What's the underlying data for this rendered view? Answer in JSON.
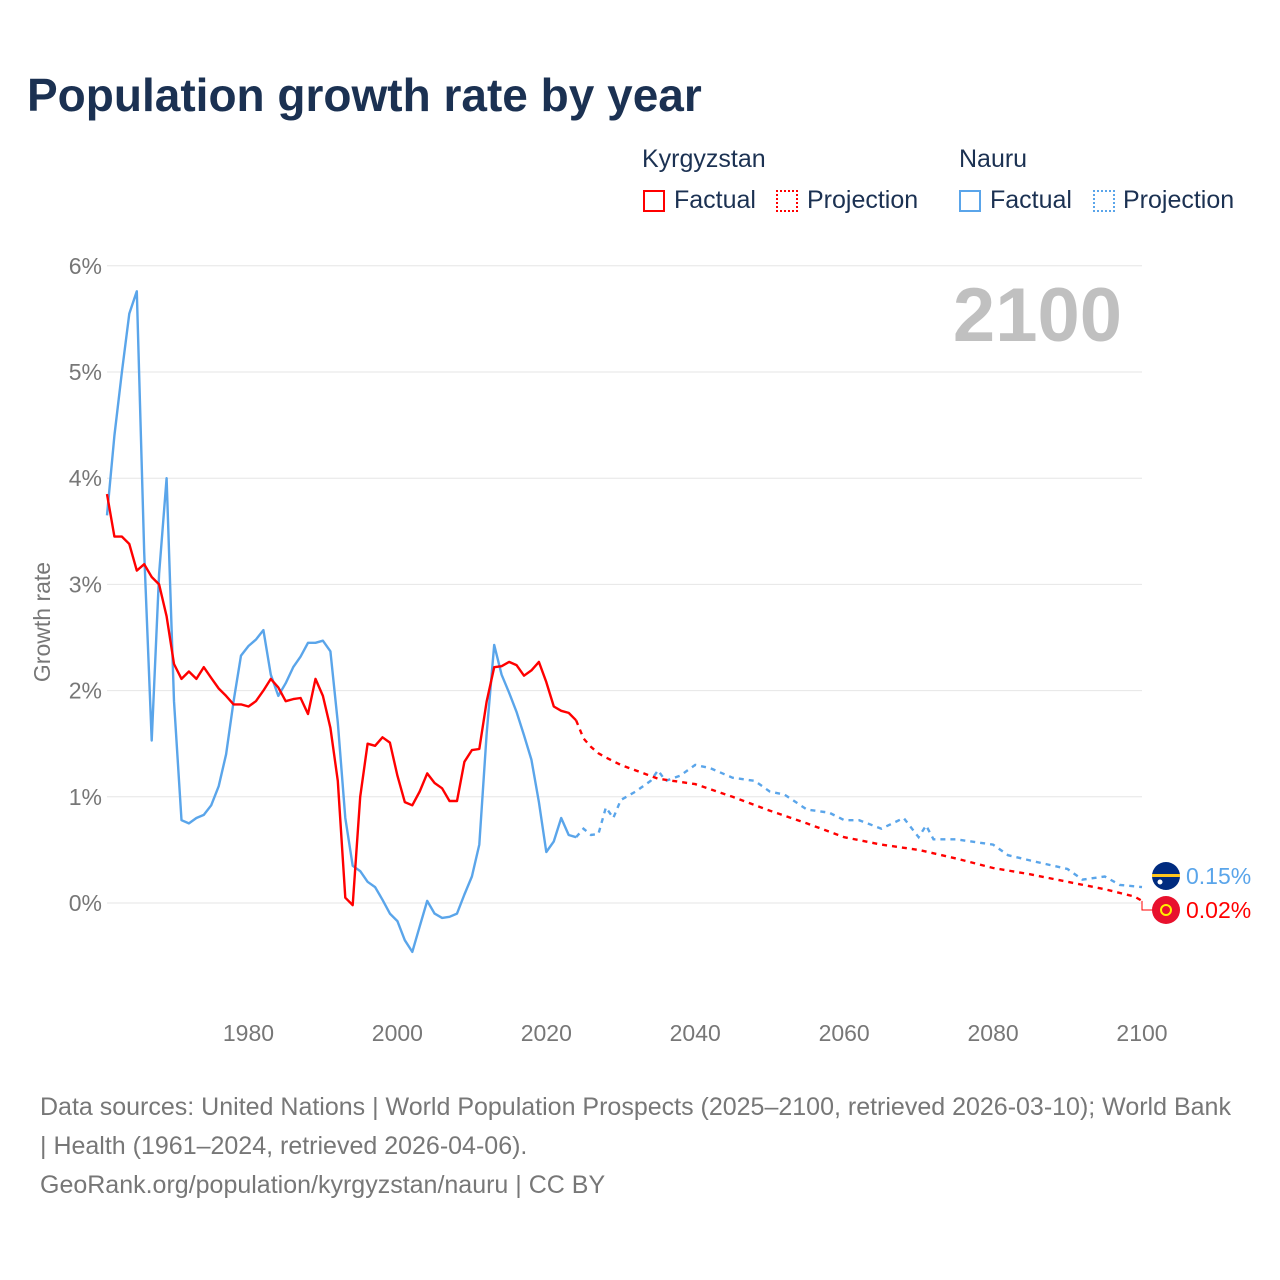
{
  "chart_data": {
    "type": "line",
    "title": "Population growth rate by year",
    "ylabel": "Growth rate",
    "xlabel": "",
    "ylim": [
      -0.9,
      6
    ],
    "xlim": [
      1961,
      2100
    ],
    "yticks": [
      "0%",
      "1%",
      "2%",
      "3%",
      "4%",
      "5%",
      "6%"
    ],
    "xticks": [
      "1980",
      "2000",
      "2020",
      "2040",
      "2060",
      "2080",
      "2100"
    ],
    "year_label": "2100",
    "legend": {
      "groups": [
        {
          "name": "Kyrgyzstan",
          "factual": "Factual",
          "projection": "Projection"
        },
        {
          "name": "Nauru",
          "factual": "Factual",
          "projection": "Projection"
        }
      ],
      "placement": "top-right"
    },
    "series": [
      {
        "name": "Kyrgyzstan",
        "color": "#ff0000",
        "end_label": "0.02%",
        "factual": [
          [
            1961,
            3.85
          ],
          [
            1962,
            3.45
          ],
          [
            1963,
            3.45
          ],
          [
            1964,
            3.38
          ],
          [
            1965,
            3.13
          ],
          [
            1966,
            3.19
          ],
          [
            1967,
            3.07
          ],
          [
            1968,
            3.0
          ],
          [
            1969,
            2.7
          ],
          [
            1970,
            2.25
          ],
          [
            1971,
            2.11
          ],
          [
            1972,
            2.18
          ],
          [
            1973,
            2.11
          ],
          [
            1974,
            2.22
          ],
          [
            1975,
            2.12
          ],
          [
            1976,
            2.02
          ],
          [
            1977,
            1.95
          ],
          [
            1978,
            1.87
          ],
          [
            1979,
            1.87
          ],
          [
            1980,
            1.85
          ],
          [
            1981,
            1.9
          ],
          [
            1982,
            2.0
          ],
          [
            1983,
            2.11
          ],
          [
            1984,
            2.03
          ],
          [
            1985,
            1.9
          ],
          [
            1986,
            1.92
          ],
          [
            1987,
            1.93
          ],
          [
            1988,
            1.78
          ],
          [
            1989,
            2.11
          ],
          [
            1990,
            1.95
          ],
          [
            1991,
            1.65
          ],
          [
            1992,
            1.15
          ],
          [
            1993,
            0.05
          ],
          [
            1994,
            -0.02
          ],
          [
            1995,
            1.0
          ],
          [
            1996,
            1.5
          ],
          [
            1997,
            1.48
          ],
          [
            1998,
            1.56
          ],
          [
            1999,
            1.51
          ],
          [
            2000,
            1.2
          ],
          [
            2001,
            0.95
          ],
          [
            2002,
            0.92
          ],
          [
            2003,
            1.05
          ],
          [
            2004,
            1.22
          ],
          [
            2005,
            1.13
          ],
          [
            2006,
            1.08
          ],
          [
            2007,
            0.96
          ],
          [
            2008,
            0.96
          ],
          [
            2009,
            1.33
          ],
          [
            2010,
            1.44
          ],
          [
            2011,
            1.45
          ],
          [
            2012,
            1.9
          ],
          [
            2013,
            2.22
          ],
          [
            2014,
            2.23
          ],
          [
            2015,
            2.27
          ],
          [
            2016,
            2.24
          ],
          [
            2017,
            2.14
          ],
          [
            2018,
            2.19
          ],
          [
            2019,
            2.27
          ],
          [
            2020,
            2.08
          ],
          [
            2021,
            1.85
          ],
          [
            2022,
            1.81
          ],
          [
            2023,
            1.79
          ],
          [
            2024,
            1.72
          ]
        ],
        "projection": [
          [
            2024,
            1.72
          ],
          [
            2025,
            1.55
          ],
          [
            2026,
            1.47
          ],
          [
            2027,
            1.41
          ],
          [
            2028,
            1.37
          ],
          [
            2030,
            1.3
          ],
          [
            2035,
            1.17
          ],
          [
            2040,
            1.12
          ],
          [
            2045,
            1.0
          ],
          [
            2050,
            0.87
          ],
          [
            2055,
            0.75
          ],
          [
            2060,
            0.62
          ],
          [
            2065,
            0.55
          ],
          [
            2070,
            0.5
          ],
          [
            2075,
            0.42
          ],
          [
            2080,
            0.33
          ],
          [
            2085,
            0.27
          ],
          [
            2090,
            0.2
          ],
          [
            2095,
            0.13
          ],
          [
            2099,
            0.06
          ],
          [
            2100,
            0.02
          ]
        ]
      },
      {
        "name": "Nauru",
        "color": "#5aa5ea",
        "end_label": "0.15%",
        "factual": [
          [
            1961,
            3.65
          ],
          [
            1962,
            4.4
          ],
          [
            1963,
            5.0
          ],
          [
            1964,
            5.55
          ],
          [
            1965,
            5.76
          ],
          [
            1966,
            3.3
          ],
          [
            1967,
            1.53
          ],
          [
            1968,
            3.1
          ],
          [
            1969,
            4.0
          ],
          [
            1970,
            1.9
          ],
          [
            1971,
            0.78
          ],
          [
            1972,
            0.75
          ],
          [
            1973,
            0.8
          ],
          [
            1974,
            0.83
          ],
          [
            1975,
            0.92
          ],
          [
            1976,
            1.1
          ],
          [
            1977,
            1.4
          ],
          [
            1978,
            1.9
          ],
          [
            1979,
            2.33
          ],
          [
            1980,
            2.42
          ],
          [
            1981,
            2.48
          ],
          [
            1982,
            2.57
          ],
          [
            1983,
            2.15
          ],
          [
            1984,
            1.95
          ],
          [
            1985,
            2.07
          ],
          [
            1986,
            2.22
          ],
          [
            1987,
            2.32
          ],
          [
            1988,
            2.45
          ],
          [
            1989,
            2.45
          ],
          [
            1990,
            2.47
          ],
          [
            1991,
            2.37
          ],
          [
            1992,
            1.7
          ],
          [
            1993,
            0.8
          ],
          [
            1994,
            0.35
          ],
          [
            1995,
            0.3
          ],
          [
            1996,
            0.2
          ],
          [
            1997,
            0.15
          ],
          [
            1998,
            0.03
          ],
          [
            1999,
            -0.1
          ],
          [
            2000,
            -0.17
          ],
          [
            2001,
            -0.35
          ],
          [
            2002,
            -0.46
          ],
          [
            2003,
            -0.22
          ],
          [
            2004,
            0.02
          ],
          [
            2005,
            -0.1
          ],
          [
            2006,
            -0.14
          ],
          [
            2007,
            -0.13
          ],
          [
            2008,
            -0.1
          ],
          [
            2009,
            0.08
          ],
          [
            2010,
            0.25
          ],
          [
            2011,
            0.55
          ],
          [
            2012,
            1.6
          ],
          [
            2013,
            2.43
          ],
          [
            2014,
            2.15
          ],
          [
            2015,
            1.98
          ],
          [
            2016,
            1.8
          ],
          [
            2017,
            1.58
          ],
          [
            2018,
            1.35
          ],
          [
            2019,
            0.95
          ],
          [
            2020,
            0.48
          ],
          [
            2021,
            0.58
          ],
          [
            2022,
            0.8
          ],
          [
            2023,
            0.64
          ],
          [
            2024,
            0.62
          ]
        ],
        "projection": [
          [
            2024,
            0.62
          ],
          [
            2025,
            0.7
          ],
          [
            2026,
            0.64
          ],
          [
            2027,
            0.65
          ],
          [
            2028,
            0.9
          ],
          [
            2029,
            0.8
          ],
          [
            2030,
            0.97
          ],
          [
            2032,
            1.05
          ],
          [
            2034,
            1.15
          ],
          [
            2035,
            1.25
          ],
          [
            2036,
            1.15
          ],
          [
            2038,
            1.2
          ],
          [
            2040,
            1.3
          ],
          [
            2042,
            1.27
          ],
          [
            2045,
            1.18
          ],
          [
            2048,
            1.15
          ],
          [
            2050,
            1.05
          ],
          [
            2052,
            1.02
          ],
          [
            2055,
            0.88
          ],
          [
            2058,
            0.85
          ],
          [
            2060,
            0.78
          ],
          [
            2062,
            0.78
          ],
          [
            2065,
            0.7
          ],
          [
            2068,
            0.8
          ],
          [
            2070,
            0.62
          ],
          [
            2071,
            0.73
          ],
          [
            2072,
            0.6
          ],
          [
            2075,
            0.6
          ],
          [
            2080,
            0.55
          ],
          [
            2082,
            0.45
          ],
          [
            2085,
            0.4
          ],
          [
            2090,
            0.32
          ],
          [
            2092,
            0.22
          ],
          [
            2095,
            0.25
          ],
          [
            2097,
            0.17
          ],
          [
            2100,
            0.15
          ]
        ]
      }
    ]
  },
  "source": {
    "line1": "Data sources: United Nations | World Population Prospects (2025–2100, retrieved 2026-03-10); World Bank | Health (1961–2024, retrieved 2026-04-06).",
    "line2": "GeoRank.org/population/kyrgyzstan/nauru | CC BY"
  }
}
